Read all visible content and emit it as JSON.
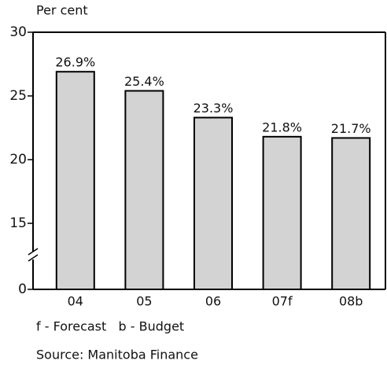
{
  "chart_data": {
    "type": "bar",
    "y_label": "Per cent",
    "categories": [
      "04",
      "05",
      "06",
      "07f",
      "08b"
    ],
    "values": [
      26.9,
      25.4,
      23.3,
      21.8,
      21.7
    ],
    "value_labels": [
      "26.9%",
      "25.4%",
      "23.3%",
      "21.8%",
      "21.7%"
    ],
    "color": "#d3d3d3",
    "ylim": [
      0,
      30
    ],
    "yticks": [
      0,
      15,
      20,
      25,
      30
    ],
    "axis_break": [
      0,
      15
    ],
    "notes": [
      "f - Forecast   b - Budget",
      "Source: Manitoba Finance"
    ]
  }
}
